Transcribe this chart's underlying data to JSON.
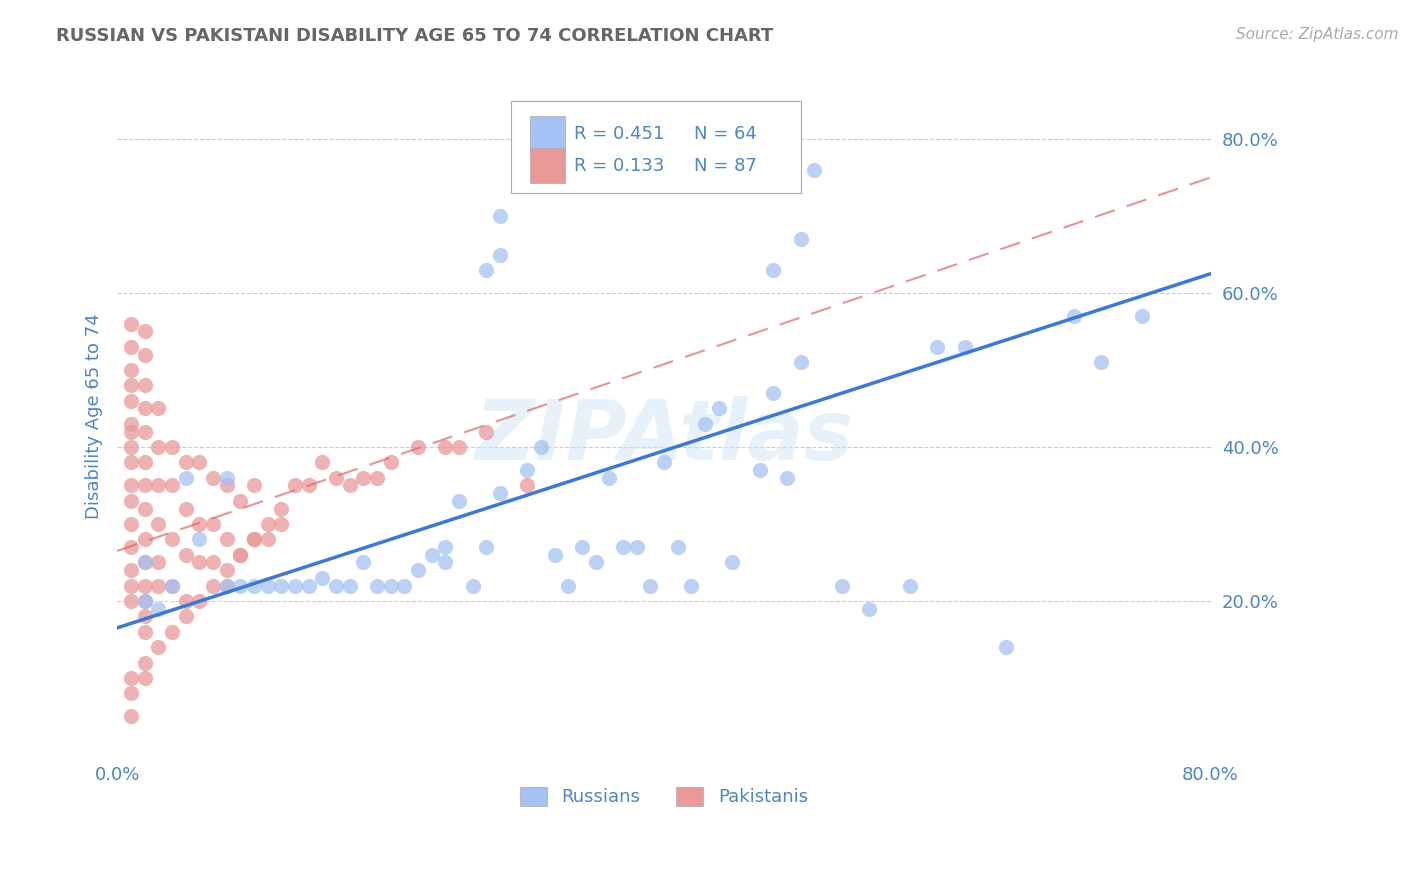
{
  "title": "RUSSIAN VS PAKISTANI DISABILITY AGE 65 TO 74 CORRELATION CHART",
  "source": "Source: ZipAtlas.com",
  "ylabel": "Disability Age 65 to 74",
  "watermark": "ZIPAtlas",
  "xlim": [
    0.0,
    0.8
  ],
  "ylim": [
    0.0,
    0.88
  ],
  "yticks_right": [
    0.2,
    0.4,
    0.6,
    0.8
  ],
  "ytick_right_labels": [
    "20.0%",
    "40.0%",
    "60.0%",
    "80.0%"
  ],
  "russian_color": "#a4c2f4",
  "pakistani_color": "#ea9999",
  "russian_line_color": "#3c78d8",
  "pakistani_line_color": "#e06666",
  "background_color": "#ffffff",
  "grid_color": "#cccccc",
  "title_color": "#666666",
  "axis_color": "#4a86c8",
  "legend_R_rus": "R = 0.451",
  "legend_N_rus": "N = 64",
  "legend_R_pak": "R = 0.133",
  "legend_N_pak": "N = 87",
  "rus_line_x0": 0.0,
  "rus_line_y0": 0.165,
  "rus_line_x1": 0.8,
  "rus_line_y1": 0.625,
  "pak_line_x0": 0.0,
  "pak_line_y0": 0.265,
  "pak_line_x1": 0.8,
  "pak_line_y1": 0.75,
  "russian_x": [
    0.51,
    0.28,
    0.5,
    0.28,
    0.27,
    0.48,
    0.65,
    0.72,
    0.05,
    0.08,
    0.1,
    0.14,
    0.15,
    0.17,
    0.18,
    0.22,
    0.23,
    0.24,
    0.24,
    0.25,
    0.27,
    0.28,
    0.3,
    0.31,
    0.32,
    0.34,
    0.35,
    0.36,
    0.37,
    0.38,
    0.4,
    0.41,
    0.43,
    0.44,
    0.45,
    0.47,
    0.48,
    0.49,
    0.5,
    0.55,
    0.6,
    0.62,
    0.7,
    0.75,
    0.02,
    0.02,
    0.03,
    0.04,
    0.06,
    0.08,
    0.09,
    0.11,
    0.12,
    0.13,
    0.16,
    0.19,
    0.2,
    0.21,
    0.26,
    0.33,
    0.39,
    0.42,
    0.53,
    0.58
  ],
  "russian_y": [
    0.76,
    0.7,
    0.67,
    0.65,
    0.63,
    0.63,
    0.14,
    0.51,
    0.36,
    0.36,
    0.22,
    0.22,
    0.23,
    0.22,
    0.25,
    0.24,
    0.26,
    0.25,
    0.27,
    0.33,
    0.27,
    0.34,
    0.37,
    0.4,
    0.26,
    0.27,
    0.25,
    0.36,
    0.27,
    0.27,
    0.38,
    0.27,
    0.43,
    0.45,
    0.25,
    0.37,
    0.47,
    0.36,
    0.51,
    0.19,
    0.53,
    0.53,
    0.57,
    0.57,
    0.25,
    0.2,
    0.19,
    0.22,
    0.28,
    0.22,
    0.22,
    0.22,
    0.22,
    0.22,
    0.22,
    0.22,
    0.22,
    0.22,
    0.22,
    0.22,
    0.22,
    0.22,
    0.22,
    0.22
  ],
  "pakistani_x": [
    0.01,
    0.01,
    0.01,
    0.01,
    0.01,
    0.01,
    0.01,
    0.01,
    0.01,
    0.01,
    0.01,
    0.01,
    0.01,
    0.01,
    0.01,
    0.01,
    0.02,
    0.02,
    0.02,
    0.02,
    0.02,
    0.02,
    0.02,
    0.02,
    0.02,
    0.02,
    0.02,
    0.02,
    0.02,
    0.02,
    0.03,
    0.03,
    0.03,
    0.03,
    0.03,
    0.03,
    0.04,
    0.04,
    0.04,
    0.04,
    0.05,
    0.05,
    0.05,
    0.05,
    0.06,
    0.06,
    0.06,
    0.07,
    0.07,
    0.07,
    0.08,
    0.08,
    0.08,
    0.09,
    0.09,
    0.1,
    0.1,
    0.11,
    0.12,
    0.13,
    0.14,
    0.15,
    0.16,
    0.17,
    0.18,
    0.19,
    0.2,
    0.22,
    0.24,
    0.25,
    0.27,
    0.3,
    0.01,
    0.01,
    0.01,
    0.02,
    0.02,
    0.03,
    0.04,
    0.05,
    0.06,
    0.07,
    0.08,
    0.09,
    0.1,
    0.11,
    0.12
  ],
  "pakistani_y": [
    0.56,
    0.53,
    0.5,
    0.48,
    0.46,
    0.43,
    0.42,
    0.4,
    0.38,
    0.35,
    0.33,
    0.3,
    0.27,
    0.24,
    0.22,
    0.2,
    0.55,
    0.52,
    0.48,
    0.45,
    0.42,
    0.38,
    0.35,
    0.32,
    0.28,
    0.25,
    0.22,
    0.2,
    0.18,
    0.16,
    0.45,
    0.4,
    0.35,
    0.3,
    0.25,
    0.22,
    0.4,
    0.35,
    0.28,
    0.22,
    0.38,
    0.32,
    0.26,
    0.2,
    0.38,
    0.3,
    0.25,
    0.36,
    0.3,
    0.25,
    0.35,
    0.28,
    0.22,
    0.33,
    0.26,
    0.35,
    0.28,
    0.3,
    0.32,
    0.35,
    0.35,
    0.38,
    0.36,
    0.35,
    0.36,
    0.36,
    0.38,
    0.4,
    0.4,
    0.4,
    0.42,
    0.35,
    0.05,
    0.1,
    0.08,
    0.12,
    0.1,
    0.14,
    0.16,
    0.18,
    0.2,
    0.22,
    0.24,
    0.26,
    0.28,
    0.28,
    0.3
  ]
}
